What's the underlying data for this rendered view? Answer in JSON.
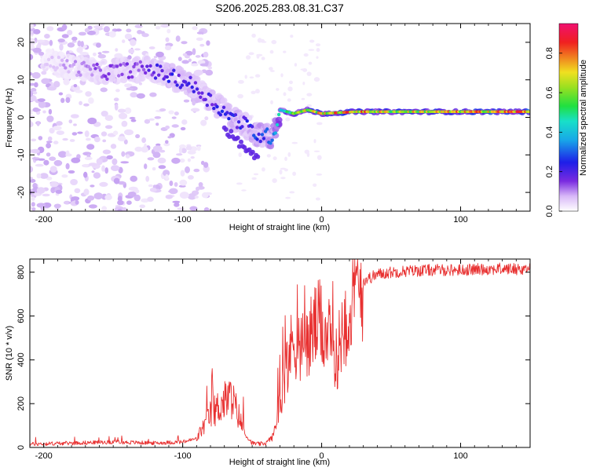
{
  "title": "S206.2025.283.08.31.C37",
  "chart_data": [
    {
      "type": "heatmap",
      "xlabel": "Height of straight line (km)",
      "ylabel": "Frequency (Hz)",
      "xlim": [
        -210,
        150
      ],
      "ylim": [
        -25,
        25
      ],
      "xticks": [
        -200,
        -100,
        0,
        100
      ],
      "yticks": [
        -20,
        -10,
        0,
        10,
        20
      ],
      "colorbar": {
        "label": "Normalized spectral amplitude",
        "range": [
          0.0,
          0.95
        ],
        "ticks": [
          0.0,
          0.2,
          0.4,
          0.6,
          0.8
        ],
        "colormap": "rainbow (white-violet-blue-cyan-green-yellow-red-magenta)"
      },
      "ridge": [
        {
          "x": -200,
          "freq": 15,
          "amp": 0.05
        },
        {
          "x": -160,
          "freq": 12,
          "amp": 0.12
        },
        {
          "x": -125,
          "freq": 13,
          "amp": 0.15
        },
        {
          "x": -110,
          "freq": 11,
          "amp": 0.2
        },
        {
          "x": -95,
          "freq": 9,
          "amp": 0.2
        },
        {
          "x": -85,
          "freq": 6,
          "amp": 0.18
        },
        {
          "x": -75,
          "freq": 3,
          "amp": 0.2
        },
        {
          "x": -65,
          "freq": 0,
          "amp": 0.22
        },
        {
          "x": -55,
          "freq": -2,
          "amp": 0.2
        },
        {
          "x": -45,
          "freq": -5,
          "amp": 0.25
        },
        {
          "x": -35,
          "freq": -5,
          "amp": 0.3
        },
        {
          "x": -30,
          "freq": 2,
          "amp": 0.4
        },
        {
          "x": -20,
          "freq": 1,
          "amp": 0.55
        },
        {
          "x": -10,
          "freq": 2,
          "amp": 0.6
        },
        {
          "x": 0,
          "freq": 1,
          "amp": 0.65
        },
        {
          "x": 25,
          "freq": 1.5,
          "amp": 0.7
        },
        {
          "x": 50,
          "freq": 1.5,
          "amp": 0.6
        },
        {
          "x": 100,
          "freq": 1.5,
          "amp": 0.65
        },
        {
          "x": 150,
          "freq": 1.5,
          "amp": 0.75
        }
      ]
    },
    {
      "type": "line",
      "xlabel": "Height of straight line (km)",
      "ylabel": "SNR (10 * v/v)",
      "xlim": [
        -210,
        150
      ],
      "ylim": [
        0,
        860
      ],
      "xticks": [
        -200,
        -100,
        0,
        100
      ],
      "yticks": [
        0,
        200,
        400,
        600,
        800
      ],
      "color": "#e83030",
      "series": [
        {
          "name": "SNR",
          "x": [
            -210,
            -180,
            -150,
            -120,
            -100,
            -90,
            -80,
            -70,
            -65,
            -60,
            -55,
            -50,
            -45,
            -40,
            -35,
            -30,
            -25,
            -20,
            -15,
            -10,
            -5,
            0,
            5,
            10,
            15,
            20,
            25,
            30,
            40,
            50,
            60,
            80,
            100,
            120,
            150
          ],
          "y": [
            15,
            20,
            25,
            20,
            25,
            40,
            150,
            210,
            230,
            150,
            60,
            20,
            15,
            20,
            50,
            200,
            380,
            500,
            450,
            480,
            550,
            560,
            500,
            380,
            550,
            620,
            700,
            760,
            790,
            800,
            805,
            810,
            810,
            815,
            815
          ]
        }
      ]
    }
  ]
}
